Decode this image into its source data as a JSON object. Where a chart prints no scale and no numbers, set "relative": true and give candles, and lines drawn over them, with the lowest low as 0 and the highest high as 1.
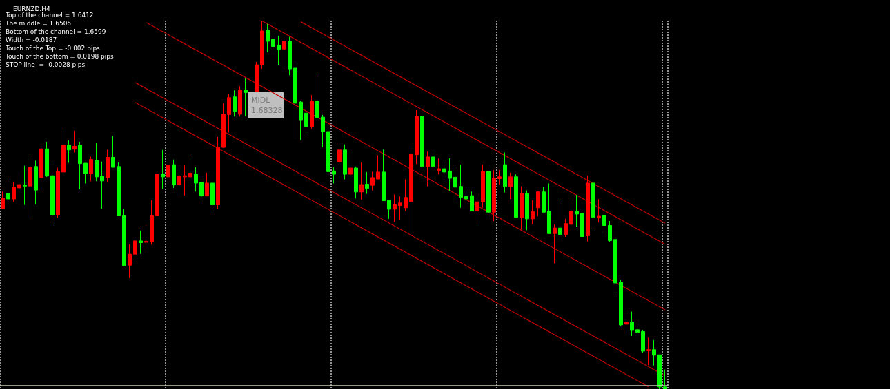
{
  "chart_data": {
    "type": "candlestick",
    "title": "EURNZD,H4",
    "relative": true,
    "grid": "x",
    "annotations": [
      "Top of the channel = 1.6412",
      "The middle = 1.6506",
      "Bottom of the channel = 1.6599",
      "Width = -0.0187",
      "Touch of the Top = -0.002 pips",
      "Touch of the bottom = 0.0198 pips",
      "STOP line  = -0.0028 pips",
      {
        "text": "MIDL 1.68328"
      }
    ],
    "categories": [
      null,
      null,
      null,
      null,
      null,
      null,
      null,
      null,
      null,
      null,
      null,
      null,
      null,
      null,
      null,
      null,
      null,
      null,
      null,
      null,
      null,
      null,
      null,
      null,
      null,
      null,
      null,
      null,
      null,
      null,
      null,
      null,
      null,
      null,
      null,
      null,
      null,
      null,
      null,
      null,
      null,
      null,
      null,
      null,
      null,
      null,
      null,
      null,
      null,
      null,
      null,
      null,
      null,
      null,
      null,
      null,
      null,
      null,
      null,
      null,
      null,
      null,
      null,
      null,
      null,
      null,
      null,
      null,
      null,
      null,
      null,
      null,
      null,
      null,
      null,
      null,
      null,
      null,
      null,
      null,
      null,
      null,
      null,
      null,
      null,
      null,
      null,
      null,
      null,
      null,
      null,
      null,
      null,
      null,
      null,
      null,
      null,
      null,
      null,
      null,
      null,
      null,
      null,
      null,
      null,
      null,
      null,
      null,
      null,
      null,
      null,
      null,
      null,
      null,
      null,
      null,
      null,
      null,
      null,
      null,
      null
    ],
    "ohlc": [
      [
        0.489,
        0.536,
        0.489,
        0.518
      ],
      [
        0.531,
        0.565,
        0.488,
        0.516
      ],
      [
        0.516,
        0.563,
        0.508,
        0.548
      ],
      [
        0.546,
        0.592,
        0.502,
        0.555
      ],
      [
        0.554,
        0.606,
        0.5,
        0.551
      ],
      [
        0.551,
        0.626,
        0.465,
        0.602
      ],
      [
        0.604,
        0.62,
        0.502,
        0.54
      ],
      [
        0.574,
        0.66,
        0.542,
        0.652
      ],
      [
        0.652,
        0.671,
        0.576,
        0.578
      ],
      [
        0.579,
        0.612,
        0.445,
        0.472
      ],
      [
        0.472,
        0.601,
        0.464,
        0.591
      ],
      [
        0.589,
        0.708,
        0.579,
        0.662
      ],
      [
        0.662,
        0.675,
        0.614,
        0.649
      ],
      [
        0.651,
        0.701,
        0.642,
        0.659
      ],
      [
        0.662,
        0.671,
        0.542,
        0.612
      ],
      [
        0.613,
        0.613,
        0.558,
        0.584
      ],
      [
        0.584,
        0.631,
        0.564,
        0.623
      ],
      [
        0.62,
        0.667,
        0.564,
        0.576
      ],
      [
        0.578,
        0.617,
        0.489,
        0.565
      ],
      [
        0.574,
        0.65,
        0.562,
        0.629
      ],
      [
        0.629,
        0.687,
        0.601,
        0.602
      ],
      [
        0.604,
        0.615,
        0.469,
        0.47
      ],
      [
        0.47,
        0.488,
        0.333,
        0.335
      ],
      [
        0.336,
        0.393,
        0.301,
        0.366
      ],
      [
        0.366,
        0.413,
        0.344,
        0.402
      ],
      [
        0.402,
        0.43,
        0.367,
        0.397
      ],
      [
        0.398,
        0.444,
        0.379,
        0.401
      ],
      [
        0.399,
        0.512,
        0.392,
        0.47
      ],
      [
        0.47,
        0.591,
        0.47,
        0.583
      ],
      [
        0.584,
        0.649,
        0.543,
        0.576
      ],
      [
        0.576,
        0.636,
        0.576,
        0.607
      ],
      [
        0.609,
        0.623,
        0.546,
        0.554
      ],
      [
        0.554,
        0.602,
        0.525,
        0.578
      ],
      [
        0.576,
        0.607,
        0.525,
        0.579
      ],
      [
        0.576,
        0.636,
        0.559,
        0.586
      ],
      [
        0.584,
        0.602,
        0.536,
        0.559
      ],
      [
        0.561,
        0.576,
        0.509,
        0.524
      ],
      [
        0.524,
        0.587,
        0.524,
        0.559
      ],
      [
        0.559,
        0.578,
        0.483,
        0.5
      ],
      [
        0.5,
        0.684,
        0.489,
        0.656
      ],
      [
        0.656,
        0.776,
        0.654,
        0.746
      ],
      [
        0.745,
        0.802,
        0.696,
        0.791
      ],
      [
        0.793,
        0.811,
        0.74,
        0.754
      ],
      [
        0.746,
        0.822,
        0.74,
        0.812
      ],
      [
        0.811,
        0.843,
        0.741,
        0.805
      ],
      null,
      [
        0.807,
        0.888,
        0.807,
        0.88
      ],
      [
        0.88,
        1.0,
        0.869,
        0.972
      ],
      [
        0.974,
        0.991,
        0.914,
        0.944
      ],
      [
        0.95,
        0.963,
        0.907,
        0.93
      ],
      [
        0.933,
        0.959,
        0.879,
        0.922
      ],
      [
        0.923,
        0.951,
        0.868,
        0.944
      ],
      [
        0.944,
        0.956,
        0.852,
        0.869
      ],
      [
        0.871,
        0.891,
        0.682,
        0.776
      ],
      [
        0.779,
        0.782,
        0.676,
        0.729
      ],
      [
        0.749,
        0.754,
        0.696,
        0.713
      ],
      [
        0.713,
        0.798,
        0.706,
        0.782
      ],
      [
        0.782,
        0.849,
        0.737,
        0.737
      ],
      [
        0.738,
        0.744,
        0.656,
        0.698
      ],
      [
        0.699,
        0.707,
        0.583,
        0.59
      ],
      [
        0.592,
        0.602,
        0.558,
        0.583
      ],
      [
        0.616,
        0.665,
        0.571,
        0.649
      ],
      [
        0.649,
        0.664,
        0.569,
        0.583
      ],
      [
        0.583,
        0.65,
        0.57,
        0.6
      ],
      [
        0.6,
        0.604,
        0.517,
        0.535
      ],
      [
        0.535,
        0.615,
        0.514,
        0.555
      ],
      [
        0.556,
        0.589,
        0.53,
        0.545
      ],
      [
        0.553,
        0.59,
        0.539,
        0.574
      ],
      [
        0.57,
        0.635,
        0.57,
        0.589
      ],
      [
        0.589,
        0.65,
        0.511,
        0.511
      ],
      [
        0.513,
        0.513,
        0.462,
        0.488
      ],
      [
        0.488,
        0.528,
        0.454,
        0.5
      ],
      [
        0.498,
        0.523,
        0.458,
        0.505
      ],
      [
        0.492,
        0.569,
        0.483,
        0.52
      ],
      [
        0.509,
        0.66,
        0.414,
        0.637
      ],
      [
        0.636,
        0.757,
        0.611,
        0.74
      ],
      [
        0.74,
        0.76,
        0.576,
        0.604
      ],
      [
        0.604,
        0.645,
        0.55,
        0.63
      ],
      [
        0.63,
        0.642,
        0.573,
        0.604
      ],
      [
        0.593,
        0.626,
        0.583,
        0.598
      ],
      [
        0.598,
        0.609,
        0.567,
        0.589
      ],
      [
        0.592,
        0.626,
        0.538,
        0.572
      ],
      [
        0.575,
        0.598,
        0.511,
        0.548
      ],
      [
        0.55,
        0.609,
        0.492,
        0.52
      ],
      [
        0.523,
        0.536,
        0.488,
        0.516
      ],
      [
        0.525,
        0.536,
        0.483,
        0.483
      ],
      [
        0.483,
        0.521,
        0.444,
        0.508
      ],
      [
        0.508,
        0.609,
        0.492,
        0.591
      ],
      [
        0.591,
        0.604,
        0.468,
        0.48
      ],
      [
        0.48,
        0.594,
        0.456,
        0.572
      ],
      [
        0.571,
        0.594,
        0.555,
        0.576
      ],
      [
        0.609,
        0.642,
        0.534,
        0.55
      ],
      [
        0.55,
        0.587,
        0.516,
        0.576
      ],
      [
        0.576,
        0.583,
        0.466,
        0.466
      ],
      [
        0.466,
        0.55,
        0.433,
        0.531
      ],
      [
        0.531,
        0.539,
        0.431,
        0.462
      ],
      [
        0.462,
        0.512,
        0.447,
        0.481
      ],
      [
        0.492,
        0.535,
        0.469,
        0.535
      ],
      [
        0.535,
        0.548,
        0.48,
        0.48
      ],
      [
        0.483,
        0.558,
        0.422,
        0.422
      ],
      [
        0.422,
        0.447,
        0.341,
        0.437
      ],
      [
        0.437,
        0.505,
        0.408,
        0.419
      ],
      [
        0.419,
        0.462,
        0.413,
        0.449
      ],
      [
        0.447,
        0.506,
        0.439,
        0.483
      ],
      [
        0.483,
        0.527,
        0.441,
        0.475
      ],
      [
        0.477,
        0.503,
        0.414,
        0.414
      ],
      [
        0.416,
        0.579,
        0.4,
        0.559
      ],
      [
        0.559,
        0.561,
        0.43,
        0.466
      ],
      [
        0.464,
        0.516,
        0.452,
        0.469
      ],
      [
        0.472,
        0.491,
        0.422,
        0.444
      ],
      [
        0.444,
        0.456,
        0.399,
        0.403
      ],
      [
        0.406,
        0.428,
        0.262,
        0.288
      ],
      [
        0.29,
        0.296,
        0.17,
        0.174
      ],
      [
        0.176,
        0.206,
        0.154,
        0.181
      ],
      [
        0.182,
        0.21,
        0.144,
        0.159
      ],
      [
        0.161,
        0.181,
        0.129,
        0.154
      ],
      [
        0.156,
        0.16,
        0.099,
        0.103
      ],
      [
        0.104,
        0.14,
        0.065,
        0.107
      ],
      [
        0.107,
        0.133,
        0.064,
        0.092
      ],
      [
        0.093,
        0.093,
        0,
        0.006
      ],
      [
        0.006,
        0.053,
        0,
        0
      ]
    ],
    "colors": [
      "#ff0000",
      "#00ff00",
      "#ff0000",
      "#ff0000",
      "#00ff00",
      "#ff0000",
      "#00ff00",
      "#ff0000",
      "#00ff00",
      "#00ff00",
      "#ff0000",
      "#ff0000",
      "#00ff00",
      "#ff0000",
      "#00ff00",
      "#00ff00",
      "#ff0000",
      "#00ff00",
      "#00ff00",
      "#ff0000",
      "#00ff00",
      "#00ff00",
      "#00ff00",
      "#ff0000",
      "#ff0000",
      "#00ff00",
      "#ff0000",
      "#ff0000",
      "#ff0000",
      "#00ff00",
      "#ff0000",
      "#00ff00",
      "#ff0000",
      "#ff0000",
      "#ff0000",
      "#00ff00",
      "#00ff00",
      "#ff0000",
      "#00ff00",
      "#ff0000",
      "#ff0000",
      "#ff0000",
      "#00ff00",
      "#ff0000",
      "#00ff00",
      null,
      "#ff0000",
      "#ff0000",
      "#00ff00",
      "#00ff00",
      "#00ff00",
      "#ff0000",
      "#00ff00",
      "#00ff00",
      "#00ff00",
      "#00ff00",
      "#ff0000",
      "#00ff00",
      "#00ff00",
      "#00ff00",
      "#00ff00",
      "#ff0000",
      "#00ff00",
      "#ff0000",
      "#00ff00",
      "#ff0000",
      "#00ff00",
      "#ff0000",
      "#ff0000",
      "#00ff00",
      "#00ff00",
      "#ff0000",
      "#ff0000",
      "#ff0000",
      "#ff0000",
      "#ff0000",
      "#00ff00",
      "#ff0000",
      "#00ff00",
      "#ff0000",
      "#00ff00",
      "#00ff00",
      "#00ff00",
      "#00ff00",
      "#00ff00",
      "#00ff00",
      "#ff0000",
      "#ff0000",
      "#00ff00",
      "#ff0000",
      "#ff0000",
      "#00ff00",
      "#ff0000",
      "#00ff00",
      "#ff0000",
      "#00ff00",
      "#ff0000",
      "#ff0000",
      "#00ff00",
      "#00ff00",
      "#ff0000",
      "#00ff00",
      "#ff0000",
      "#ff0000",
      "#00ff00",
      "#00ff00",
      "#ff0000",
      "#00ff00",
      "#ff0000",
      "#00ff00",
      "#00ff00",
      "#00ff00",
      "#00ff00",
      "#ff0000",
      "#00ff00",
      "#00ff00",
      "#00ff00",
      "#ff0000",
      "#00ff00",
      "#00ff00",
      "#00ff00"
    ],
    "series": [
      {
        "type": "line",
        "color": "#c80000",
        "values": [
          null,
          null,
          null,
          null,
          null,
          null,
          null,
          null,
          null,
          null,
          null,
          null,
          null,
          null,
          null,
          null,
          null,
          null,
          null,
          null,
          null,
          null,
          null,
          null,
          null,
          null,
          null,
          null,
          null,
          null,
          null,
          null,
          null,
          null,
          null,
          null,
          null,
          null,
          null,
          null,
          null,
          null,
          null,
          null,
          null,
          null,
          null,
          null,
          null,
          null,
          null,
          null,
          null,
          null,
          0.997,
          null,
          null,
          null,
          null,
          null,
          null,
          null,
          null,
          null,
          null,
          null,
          null,
          null,
          null,
          null,
          null,
          null,
          null,
          null,
          null,
          null,
          null,
          null,
          null,
          null,
          null,
          null,
          null,
          null,
          null,
          null,
          null,
          null,
          null,
          null,
          null,
          null,
          null,
          null,
          null,
          null,
          null,
          null,
          null,
          null,
          null,
          null,
          null,
          null,
          null,
          null,
          null,
          null,
          null,
          null,
          null,
          null,
          null,
          null,
          null,
          null,
          null,
          null,
          null,
          null,
          0.45
        ]
      },
      {
        "type": "line",
        "color": "#c80000",
        "values": [
          null,
          null,
          null,
          null,
          null,
          null,
          null,
          null,
          null,
          null,
          null,
          null,
          null,
          null,
          null,
          null,
          null,
          null,
          null,
          null,
          null,
          null,
          null,
          null,
          null,
          null,
          null,
          null,
          null,
          null,
          null,
          null,
          null,
          null,
          null,
          null,
          null,
          null,
          null,
          null,
          null,
          null,
          null,
          null,
          null,
          null,
          null,
          0.999,
          null,
          null,
          null,
          null,
          null,
          null,
          null,
          null,
          null,
          null,
          null,
          null,
          null,
          null,
          null,
          null,
          null,
          null,
          null,
          null,
          null,
          null,
          null,
          null,
          null,
          null,
          null,
          null,
          null,
          null,
          null,
          null,
          null,
          null,
          null,
          null,
          null,
          null,
          null,
          null,
          null,
          null,
          null,
          null,
          null,
          null,
          null,
          null,
          null,
          null,
          null,
          null,
          null,
          null,
          null,
          null,
          null,
          null,
          null,
          null,
          null,
          null,
          null,
          null,
          null,
          null,
          null,
          null,
          null,
          null,
          null,
          null,
          0.393
        ]
      },
      {
        "type": "line",
        "color": "#c80000",
        "values": [
          null,
          null,
          null,
          null,
          null,
          null,
          null,
          null,
          null,
          null,
          null,
          null,
          null,
          null,
          null,
          null,
          null,
          null,
          null,
          null,
          null,
          null,
          null,
          null,
          null,
          null,
          0.995,
          null,
          null,
          null,
          null,
          null,
          null,
          null,
          null,
          null,
          null,
          null,
          null,
          null,
          null,
          null,
          null,
          null,
          null,
          null,
          null,
          null,
          null,
          null,
          null,
          null,
          null,
          null,
          null,
          null,
          null,
          null,
          null,
          null,
          null,
          null,
          null,
          null,
          null,
          null,
          null,
          null,
          null,
          null,
          null,
          null,
          null,
          null,
          null,
          null,
          null,
          null,
          null,
          null,
          null,
          null,
          null,
          null,
          null,
          null,
          null,
          null,
          null,
          null,
          null,
          null,
          null,
          null,
          null,
          null,
          null,
          null,
          null,
          null,
          null,
          null,
          null,
          null,
          null,
          null,
          null,
          null,
          null,
          null,
          null,
          null,
          null,
          null,
          null,
          null,
          null,
          null,
          null,
          null,
          0.215
        ]
      },
      {
        "type": "line",
        "color": "#c80000",
        "values": [
          null,
          null,
          null,
          null,
          null,
          null,
          null,
          null,
          null,
          null,
          null,
          null,
          null,
          null,
          null,
          null,
          null,
          null,
          null,
          null,
          null,
          null,
          null,
          null,
          0.832,
          null,
          null,
          null,
          null,
          null,
          null,
          null,
          null,
          null,
          null,
          null,
          null,
          null,
          null,
          null,
          null,
          null,
          null,
          null,
          null,
          null,
          null,
          null,
          null,
          null,
          null,
          null,
          null,
          null,
          null,
          null,
          null,
          null,
          null,
          null,
          null,
          null,
          null,
          null,
          null,
          null,
          null,
          null,
          null,
          null,
          null,
          null,
          null,
          null,
          null,
          null,
          null,
          null,
          null,
          null,
          null,
          null,
          null,
          null,
          null,
          null,
          null,
          null,
          null,
          null,
          null,
          null,
          null,
          null,
          null,
          null,
          null,
          null,
          null,
          null,
          null,
          null,
          null,
          null,
          null,
          null,
          null,
          null,
          null,
          null,
          null,
          null,
          null,
          null,
          null,
          null,
          null,
          null,
          null,
          null,
          0.036
        ]
      },
      {
        "type": "line",
        "color": "#c80000",
        "values": [
          null,
          null,
          null,
          null,
          null,
          null,
          null,
          null,
          null,
          null,
          null,
          null,
          null,
          null,
          null,
          null,
          null,
          null,
          null,
          null,
          null,
          null,
          null,
          null,
          0.778,
          null,
          null,
          null,
          null,
          null,
          null,
          null,
          null,
          null,
          null,
          null,
          null,
          null,
          null,
          null,
          null,
          null,
          null,
          null,
          null,
          null,
          null,
          null,
          null,
          null,
          null,
          null,
          null,
          null,
          null,
          null,
          null,
          null,
          null,
          null,
          null,
          null,
          null,
          null,
          null,
          null,
          null,
          null,
          null,
          null,
          null,
          null,
          null,
          null,
          null,
          null,
          null,
          null,
          null,
          null,
          null,
          null,
          null,
          null,
          null,
          null,
          null,
          null,
          null,
          null,
          null,
          null,
          null,
          null,
          null,
          null,
          null,
          null,
          null,
          null,
          null,
          null,
          null,
          null,
          null,
          null,
          null,
          null,
          null,
          null,
          null,
          null,
          null,
          null,
          null,
          null,
          null,
          0.006,
          null,
          null,
          null
        ]
      }
    ],
    "ref_lines": [
      {
        "axis": "y",
        "value": 0.013,
        "color": "#c8c8b4"
      }
    ]
  }
}
